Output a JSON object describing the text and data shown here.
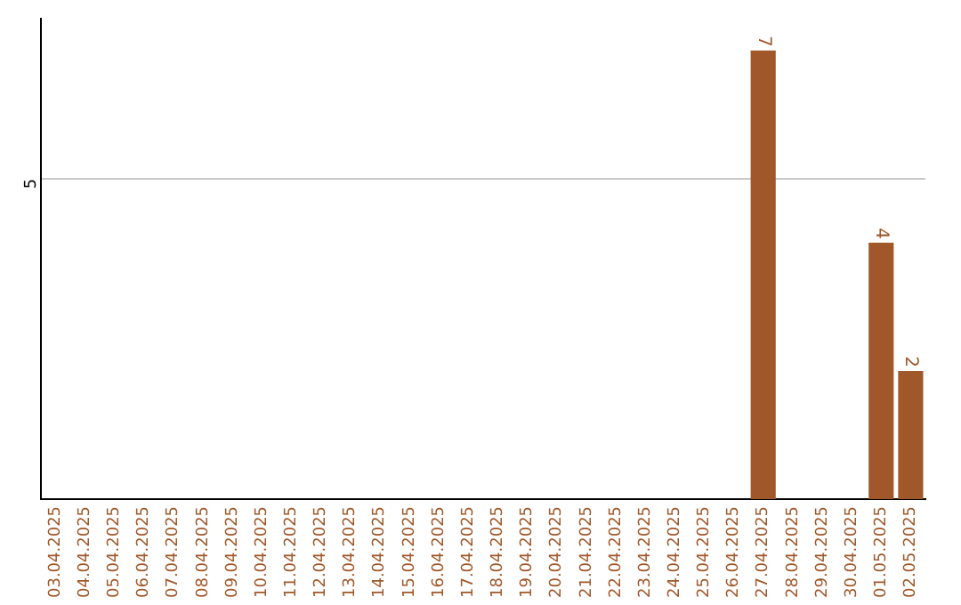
{
  "chart_data": {
    "type": "bar",
    "categories": [
      "03.04.2025",
      "04.04.2025",
      "05.04.2025",
      "06.04.2025",
      "07.04.2025",
      "08.04.2025",
      "09.04.2025",
      "10.04.2025",
      "11.04.2025",
      "12.04.2025",
      "13.04.2025",
      "14.04.2025",
      "15.04.2025",
      "16.04.2025",
      "17.04.2025",
      "18.04.2025",
      "19.04.2025",
      "20.04.2025",
      "21.04.2025",
      "22.04.2025",
      "23.04.2025",
      "24.04.2025",
      "25.04.2025",
      "26.04.2025",
      "27.04.2025",
      "28.04.2025",
      "29.04.2025",
      "30.04.2025",
      "01.05.2025",
      "02.05.2025"
    ],
    "values": [
      null,
      null,
      null,
      null,
      null,
      null,
      null,
      null,
      null,
      null,
      null,
      null,
      null,
      null,
      null,
      null,
      null,
      null,
      null,
      null,
      null,
      null,
      null,
      null,
      7,
      null,
      null,
      null,
      4,
      2
    ],
    "color": "#a0582a",
    "ylim": [
      0,
      7.5
    ],
    "yticks": [
      5
    ],
    "grid": "y",
    "data_labels": true,
    "legend": false
  }
}
